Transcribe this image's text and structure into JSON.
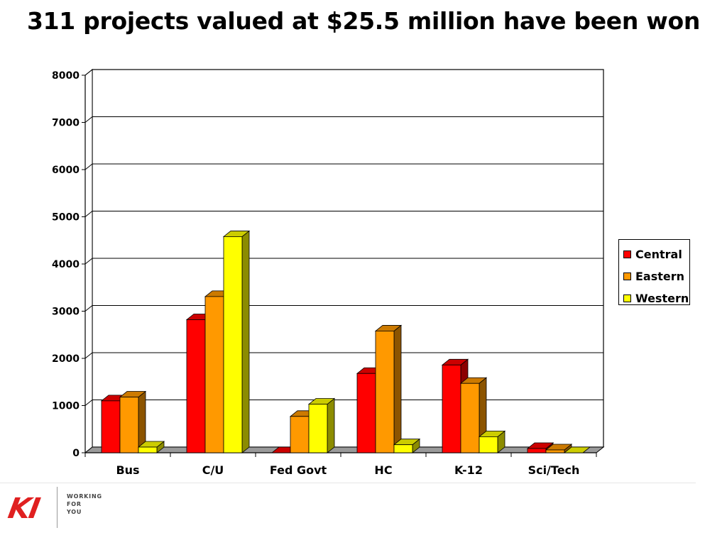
{
  "chart_data": {
    "type": "bar",
    "title": "311 projects valued at $25.5 million have been won",
    "categories": [
      "Bus",
      "C/U",
      "Fed Govt",
      "HC",
      "K-12",
      "Sci/Tech"
    ],
    "series": [
      {
        "name": "Central",
        "color": "#ff0000",
        "values": [
          1100,
          2820,
          0,
          1680,
          1860,
          90
        ]
      },
      {
        "name": "Eastern",
        "color": "#ff9900",
        "values": [
          1180,
          3310,
          770,
          2580,
          1470,
          60
        ]
      },
      {
        "name": "Western",
        "color": "#ffff00",
        "values": [
          120,
          4580,
          1030,
          170,
          340,
          0
        ]
      }
    ],
    "ylim": [
      0,
      8000
    ],
    "yticks": [
      0,
      1000,
      2000,
      3000,
      4000,
      5000,
      6000,
      7000,
      8000
    ],
    "grid": true,
    "legend_position": "right",
    "style": "3d-clustered-column"
  },
  "footer": {
    "logo_mark": "KI",
    "logo_lines": [
      "WORKING",
      "FOR",
      "YOU"
    ]
  }
}
